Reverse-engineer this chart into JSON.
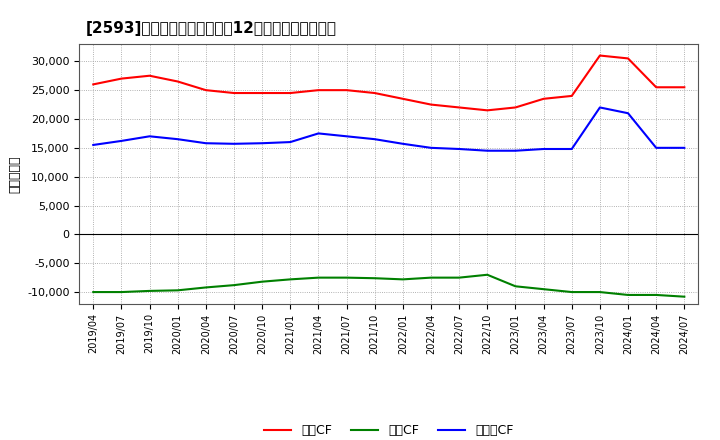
{
  "title": "[2593]　キャッシュフローの12か月移動合計の推移",
  "ylabel": "（百万円）",
  "background_color": "#ffffff",
  "plot_bg_color": "#ffffff",
  "grid_color": "#999999",
  "x_labels": [
    "2019/04",
    "2019/07",
    "2019/10",
    "2020/01",
    "2020/04",
    "2020/07",
    "2020/10",
    "2021/01",
    "2021/04",
    "2021/07",
    "2021/10",
    "2022/01",
    "2022/04",
    "2022/07",
    "2022/10",
    "2023/01",
    "2023/04",
    "2023/07",
    "2023/10",
    "2024/01",
    "2024/04",
    "2024/07"
  ],
  "operating_cf": [
    26000,
    27000,
    27500,
    26500,
    25000,
    24500,
    24500,
    24500,
    25000,
    25000,
    24500,
    23500,
    22500,
    22000,
    21500,
    22000,
    23500,
    24000,
    31000,
    30500,
    25500,
    25500
  ],
  "investing_cf": [
    -10000,
    -10000,
    -9800,
    -9700,
    -9200,
    -8800,
    -8200,
    -7800,
    -7500,
    -7500,
    -7600,
    -7800,
    -7500,
    -7500,
    -7000,
    -9000,
    -9500,
    -10000,
    -10000,
    -10500,
    -10500,
    -10800
  ],
  "free_cf": [
    15500,
    16200,
    17000,
    16500,
    15800,
    15700,
    15800,
    16000,
    17500,
    17000,
    16500,
    15700,
    15000,
    14800,
    14500,
    14500,
    14800,
    14800,
    22000,
    21000,
    15000,
    15000
  ],
  "ylim": [
    -12000,
    33000
  ],
  "yticks": [
    -10000,
    -5000,
    0,
    5000,
    10000,
    15000,
    20000,
    25000,
    30000
  ],
  "line_colors": {
    "operating": "#ff0000",
    "investing": "#008000",
    "free": "#0000ff"
  },
  "legend_labels": [
    "営業CF",
    "投資CF",
    "フリーCF"
  ]
}
